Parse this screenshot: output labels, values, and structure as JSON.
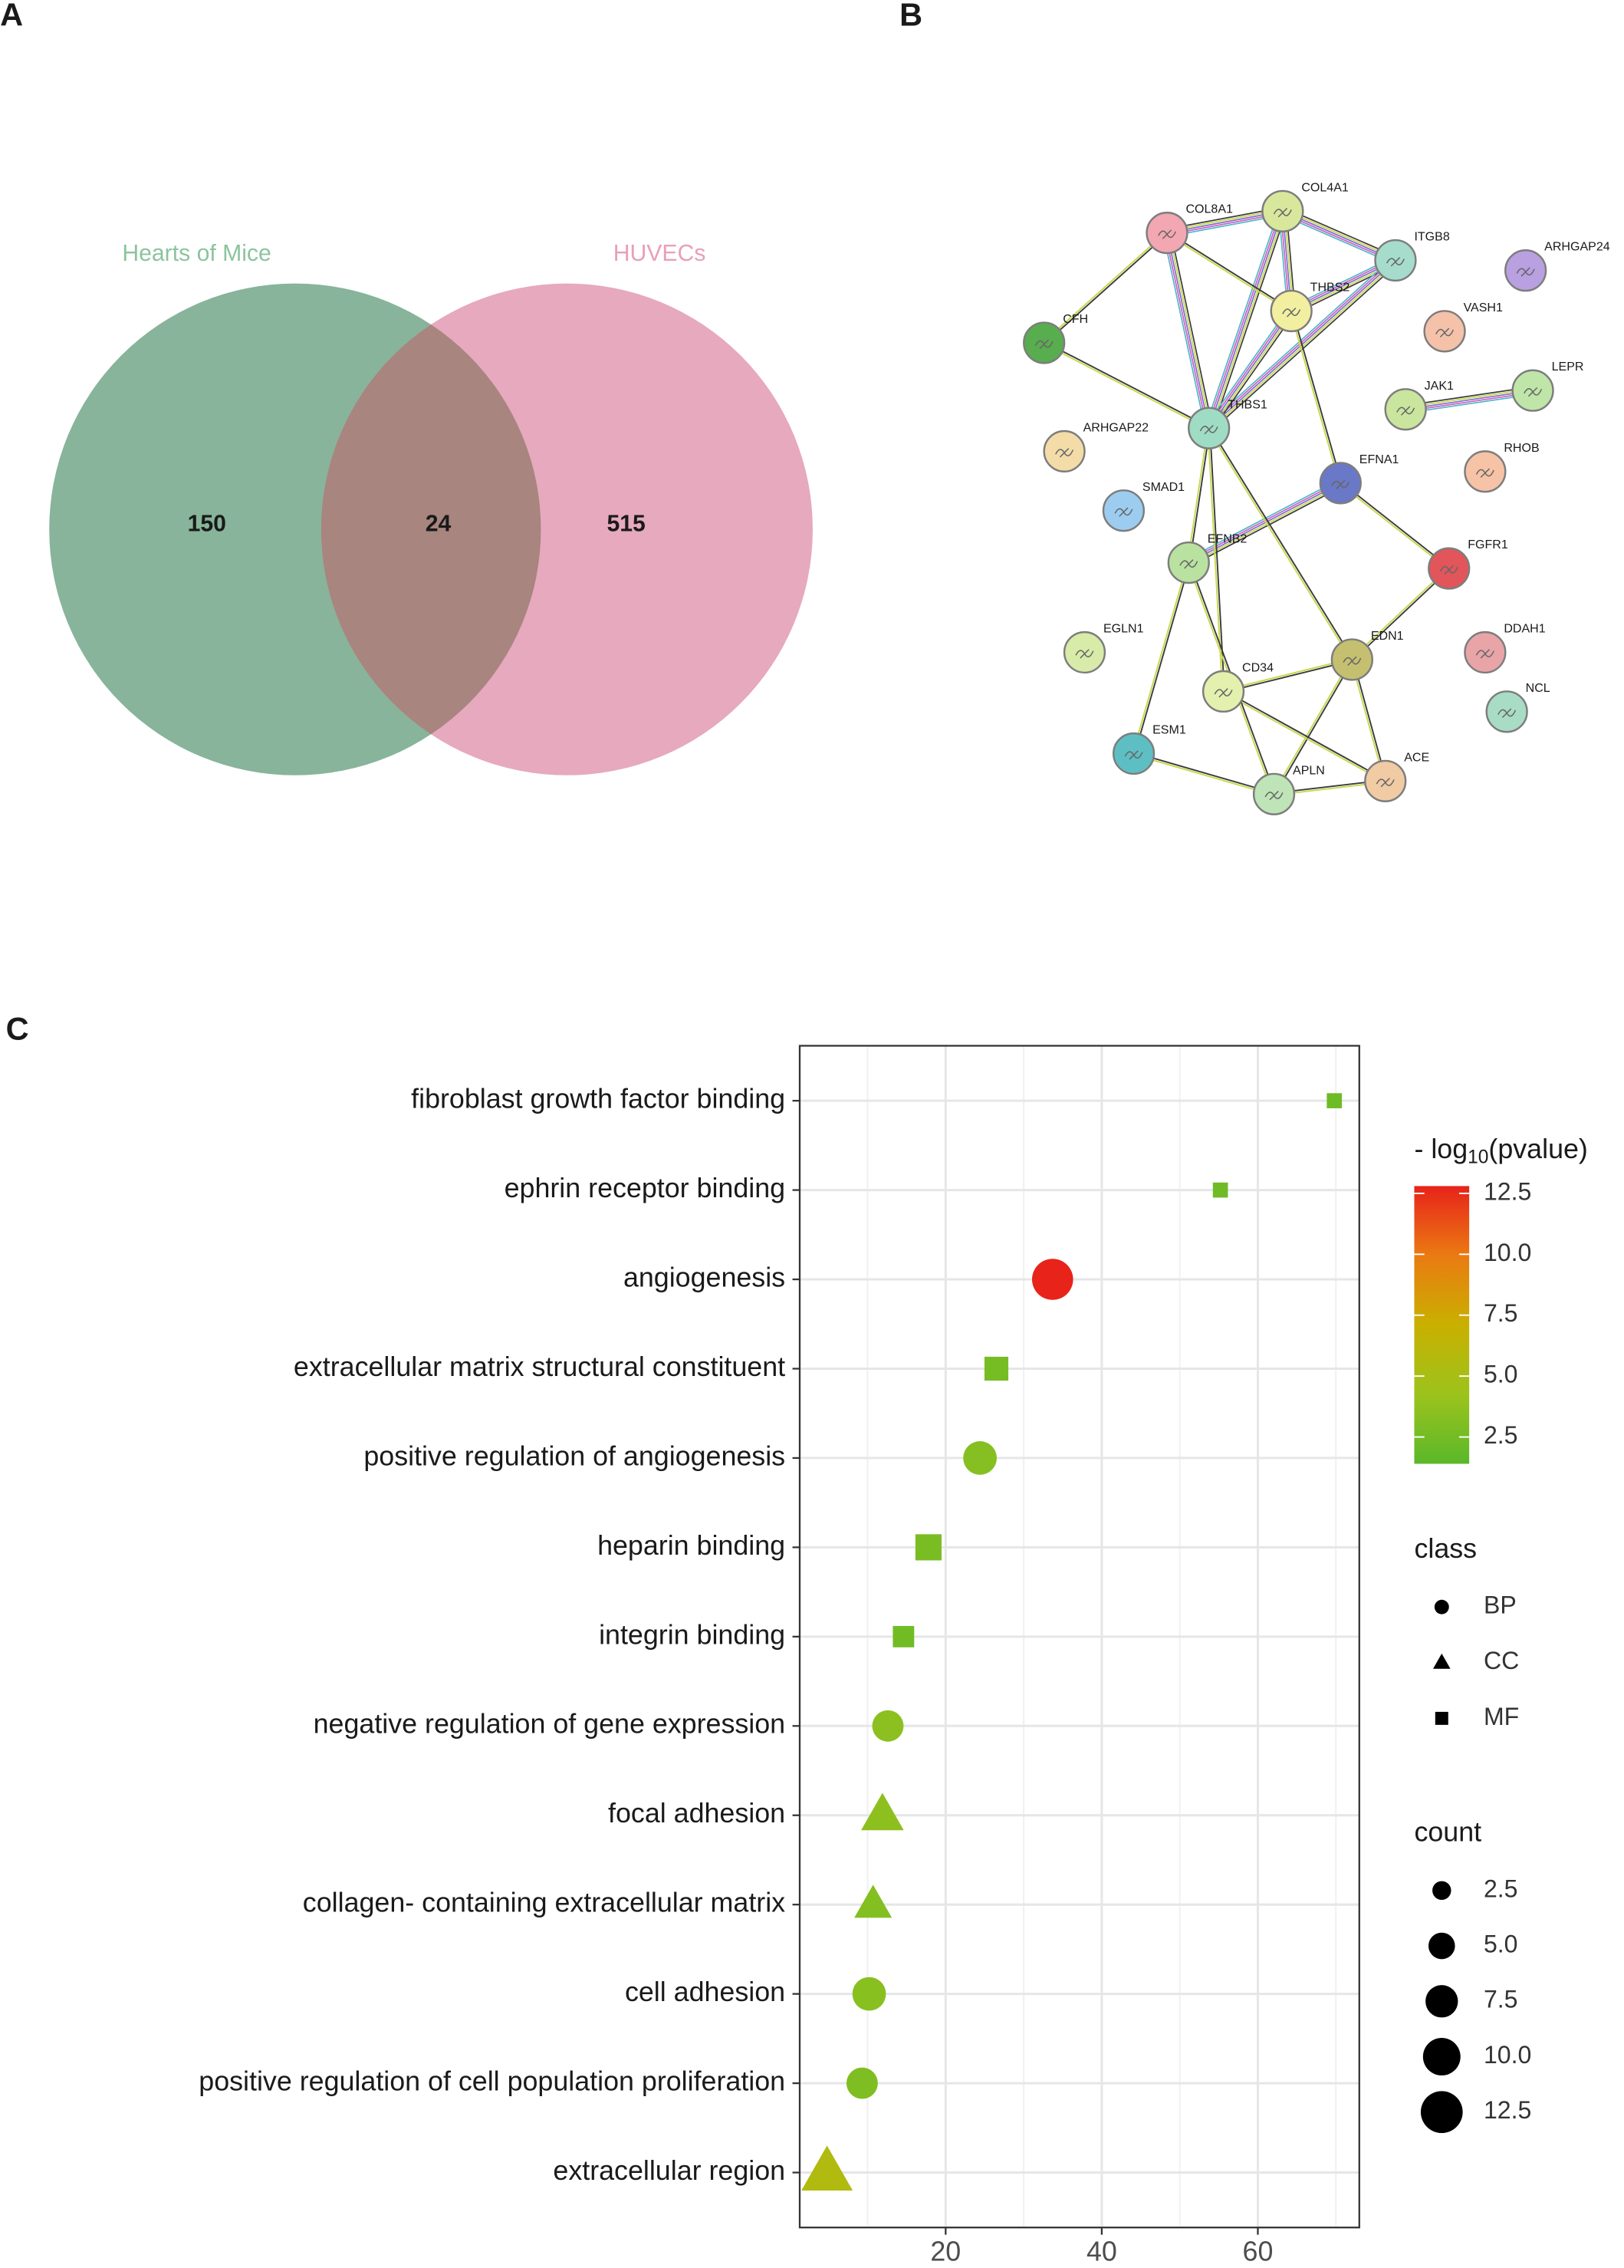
{
  "chart_data": [
    {
      "type": "venn",
      "panel": "A",
      "sets": [
        {
          "name": "Hearts of Mice",
          "color": "#87b49a"
        },
        {
          "name": "HUVECs",
          "color": "#e6a9be"
        }
      ],
      "overlap_color": "#a8857f",
      "values": [
        150,
        24,
        515
      ]
    },
    {
      "type": "network",
      "panel": "B",
      "nodes": [
        {
          "label": "COL8A1",
          "color": "#f2a7b2"
        },
        {
          "label": "COL4A1",
          "color": "#d7e89c"
        },
        {
          "label": "ITGB8",
          "color": "#a6dccc"
        },
        {
          "label": "ARHGAP24",
          "color": "#b9a0e0"
        },
        {
          "label": "THBS2",
          "color": "#f3efa0"
        },
        {
          "label": "VASH1",
          "color": "#f5c1a9"
        },
        {
          "label": "CFH",
          "color": "#58ad4e"
        },
        {
          "label": "LEPR",
          "color": "#bfe6a8"
        },
        {
          "label": "JAK1",
          "color": "#c9e59e"
        },
        {
          "label": "THBS1",
          "color": "#9fdcc4"
        },
        {
          "label": "ARHGAP22",
          "color": "#f3dca8"
        },
        {
          "label": "RHOB",
          "color": "#f6c3a6"
        },
        {
          "label": "EFNA1",
          "color": "#6a78c8"
        },
        {
          "label": "SMAD1",
          "color": "#9ccdf0"
        },
        {
          "label": "EFNB2",
          "color": "#b9e2a0"
        },
        {
          "label": "FGFR1",
          "color": "#e2555a"
        },
        {
          "label": "EGLN1",
          "color": "#d8eba8"
        },
        {
          "label": "DDAH1",
          "color": "#e9a4a8"
        },
        {
          "label": "EDN1",
          "color": "#c5c070"
        },
        {
          "label": "CD34",
          "color": "#e4f0ae"
        },
        {
          "label": "NCL",
          "color": "#a9dcc4"
        },
        {
          "label": "ESM1",
          "color": "#5dbfc4"
        },
        {
          "label": "APLN",
          "color": "#bfe4b8"
        },
        {
          "label": "ACE",
          "color": "#f1cba4"
        }
      ]
    },
    {
      "type": "scatter",
      "panel": "C",
      "categories": [
        "fibroblast growth factor binding",
        "ephrin receptor binding",
        "angiogenesis",
        "extracellular matrix structural constituent",
        "positive regulation of angiogenesis",
        "heparin binding",
        "integrin binding",
        "negative regulation of gene expression",
        "focal adhesion",
        "collagen- containing extracellular matrix",
        "cell adhesion",
        "positive regulation of cell population proliferation",
        "extracellular region"
      ],
      "values": [
        69.8,
        55.2,
        33.7,
        26.5,
        24.4,
        17.8,
        14.6,
        12.6,
        11.9,
        10.7,
        10.2,
        9.3,
        4.8
      ],
      "neg_log10_pvalue": [
        2.2,
        2.3,
        12.8,
        2.6,
        3.3,
        2.8,
        2.4,
        3.5,
        3.6,
        3.2,
        3.4,
        3.0,
        5.6
      ],
      "count": [
        2,
        2,
        12,
        5,
        8,
        6,
        4,
        7,
        9,
        7,
        8,
        7,
        13
      ],
      "class": [
        "MF",
        "MF",
        "BP",
        "MF",
        "BP",
        "MF",
        "MF",
        "BP",
        "CC",
        "CC",
        "BP",
        "BP",
        "CC"
      ],
      "xlim": [
        1.3,
        73
      ],
      "xticks": [
        20,
        40,
        60
      ],
      "xminor_ticks": [
        10,
        30,
        50,
        70
      ],
      "grid": true,
      "color_title": [
        "- log",
        "10",
        "(pvalue)"
      ],
      "colorlim": [
        1.4,
        12.8
      ],
      "colorscale": [
        "#5ab82a",
        "#9cc31c",
        "#c9b000",
        "#ea7a12",
        "#e8231a"
      ],
      "color_ticks": [
        2.5,
        {
          "value": 5,
          "label": "5.0"
        },
        7.5,
        {
          "value": 10,
          "label": "10.0"
        },
        12.5
      ],
      "class_title": "class",
      "classes": [
        "BP",
        "CC",
        "MF"
      ],
      "size_title": "count",
      "size_ticks": [
        2.5,
        {
          "value": 5,
          "label": "5.0"
        },
        7.5,
        {
          "value": 10,
          "label": "10.0"
        },
        12.5
      ]
    }
  ]
}
